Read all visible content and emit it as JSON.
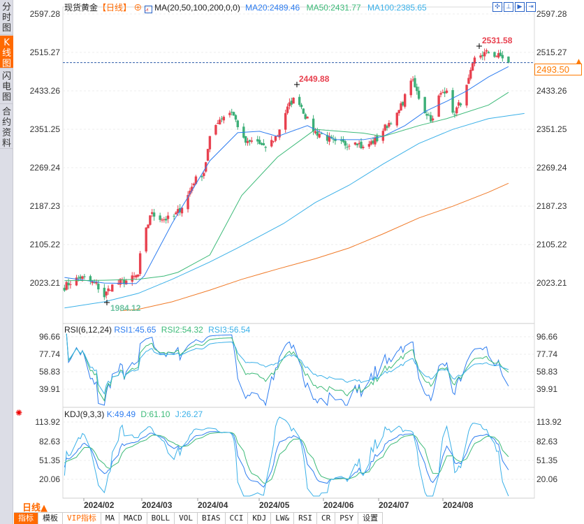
{
  "left_tabs": [
    {
      "label": "分时图",
      "active": false
    },
    {
      "label": "K线图",
      "active": true
    },
    {
      "label": "闪电图",
      "active": false
    },
    {
      "label": "合约资料",
      "active": false
    }
  ],
  "header": {
    "instrument": "现货黄金",
    "period_tag": "【日线】",
    "ma_label": "MA(20,50,100,200,0,0)",
    "ma20": "MA20:2489.46",
    "ma50": "MA50:2431.77",
    "ma100": "MA100:2385.65"
  },
  "toolbar_icons": [
    "crosshair-icon",
    "range-icon",
    "play-icon",
    "exit-icon"
  ],
  "colors": {
    "up": "#e8414f",
    "down": "#3daf78",
    "ma20": "#2e7df0",
    "ma50": "#3cba78",
    "ma100": "#3ab0e8",
    "ma200": "#f07a28",
    "accent": "#ff6a00"
  },
  "price_axis": [
    "2597.28",
    "2515.27",
    "2433.26",
    "2351.25",
    "2269.24",
    "2187.23",
    "2105.22",
    "2023.21"
  ],
  "current_price": "2493.50",
  "annotations": {
    "high_mid": "2449.88",
    "high_top": "2531.58",
    "low": "1984.12"
  },
  "rsi": {
    "label": "RSI(6,12,24)",
    "rsi1": "RSI1:45.65",
    "rsi2": "RSI2:54.32",
    "rsi3": "RSI3:56.54",
    "axis": [
      "96.66",
      "77.74",
      "58.83",
      "39.91"
    ]
  },
  "kdj": {
    "label": "KDJ(9,3,3)",
    "k": "K:49.49",
    "d": "D:61.10",
    "j": "J:26.27",
    "axis": [
      "113.92",
      "82.63",
      "51.35",
      "20.06"
    ]
  },
  "x_axis": {
    "period": "日线▲",
    "months": [
      "2024/02",
      "2024/03",
      "2024/04",
      "2024/05",
      "2024/06",
      "2024/07",
      "2024/08"
    ]
  },
  "bottom_tabs": [
    "指标",
    "模板",
    "VIP指标",
    "MA",
    "MACD",
    "BOLL",
    "VOL",
    "BIAS",
    "CCI",
    "KDJ",
    "LW&",
    "RSI",
    "CR",
    "PSY",
    "设置"
  ],
  "chart_data": {
    "type": "candlestick",
    "ylim": [
      1960,
      2600
    ],
    "close_keypoints": [
      [
        "2024-01-23",
        2015
      ],
      [
        "2024-01-26",
        2025
      ],
      [
        "2024-01-31",
        2035
      ],
      [
        "2024-02-03",
        2030
      ],
      [
        "2024-02-08",
        2020
      ],
      [
        "2024-02-12",
        1995
      ],
      [
        "2024-02-15",
        2015
      ],
      [
        "2024-02-20",
        2025
      ],
      [
        "2024-02-25",
        2030
      ],
      [
        "2024-02-29",
        2040
      ],
      [
        "2024-03-01",
        2080
      ],
      [
        "2024-03-03",
        2120
      ],
      [
        "2024-03-05",
        2150
      ],
      [
        "2024-03-06",
        2170
      ],
      [
        "2024-03-10",
        2165
      ],
      [
        "2024-03-13",
        2160
      ],
      [
        "2024-03-17",
        2160
      ],
      [
        "2024-03-20",
        2175
      ],
      [
        "2024-03-24",
        2200
      ],
      [
        "2024-03-28",
        2240
      ],
      [
        "2024-04-02",
        2260
      ],
      [
        "2024-04-05",
        2330
      ],
      [
        "2024-04-09",
        2370
      ],
      [
        "2024-04-12",
        2380
      ],
      [
        "2024-04-16",
        2390
      ],
      [
        "2024-04-19",
        2360
      ],
      [
        "2024-04-21",
        2330
      ],
      [
        "2024-04-24",
        2320
      ],
      [
        "2024-04-28",
        2330
      ],
      [
        "2024-05-02",
        2310
      ],
      [
        "2024-05-05",
        2320
      ],
      [
        "2024-05-09",
        2340
      ],
      [
        "2024-05-12",
        2380
      ],
      [
        "2024-05-16",
        2410
      ],
      [
        "2024-05-19",
        2420
      ],
      [
        "2024-05-21",
        2400
      ],
      [
        "2024-05-24",
        2370
      ],
      [
        "2024-05-28",
        2345
      ],
      [
        "2024-05-31",
        2340
      ],
      [
        "2024-06-04",
        2330
      ],
      [
        "2024-06-07",
        2320
      ],
      [
        "2024-06-11",
        2320
      ],
      [
        "2024-06-14",
        2320
      ],
      [
        "2024-06-17",
        2330
      ],
      [
        "2024-06-21",
        2310
      ],
      [
        "2024-06-24",
        2320
      ],
      [
        "2024-06-28",
        2330
      ],
      [
        "2024-07-01",
        2350
      ],
      [
        "2024-07-05",
        2370
      ],
      [
        "2024-07-08",
        2380
      ],
      [
        "2024-07-12",
        2420
      ],
      [
        "2024-07-15",
        2460
      ],
      [
        "2024-07-19",
        2420
      ],
      [
        "2024-07-22",
        2390
      ],
      [
        "2024-07-26",
        2370
      ],
      [
        "2024-07-29",
        2420
      ],
      [
        "2024-08-02",
        2440
      ],
      [
        "2024-08-05",
        2380
      ],
      [
        "2024-08-09",
        2410
      ],
      [
        "2024-08-12",
        2440
      ],
      [
        "2024-08-16",
        2500
      ],
      [
        "2024-08-19",
        2510
      ],
      [
        "2024-08-23",
        2515
      ],
      [
        "2024-08-26",
        2510
      ],
      [
        "2024-08-30",
        2505
      ],
      [
        "2024-09-02",
        2493.5
      ]
    ],
    "ma20": [
      [
        "2024-01-23",
        2035
      ],
      [
        "2024-02-12",
        2023
      ],
      [
        "2024-02-28",
        2022
      ],
      [
        "2024-03-03",
        2038
      ],
      [
        "2024-03-17",
        2150
      ],
      [
        "2024-04-05",
        2284
      ],
      [
        "2024-04-19",
        2344
      ],
      [
        "2024-04-30",
        2347
      ],
      [
        "2024-05-09",
        2336
      ],
      [
        "2024-05-24",
        2359
      ],
      [
        "2024-06-07",
        2329
      ],
      [
        "2024-06-21",
        2329
      ],
      [
        "2024-07-01",
        2336
      ],
      [
        "2024-07-12",
        2359
      ],
      [
        "2024-07-22",
        2389
      ],
      [
        "2024-08-02",
        2411
      ],
      [
        "2024-08-12",
        2433
      ],
      [
        "2024-08-23",
        2463
      ],
      [
        "2024-09-02",
        2485
      ]
    ],
    "ma50": [
      [
        "2024-01-23",
        2028
      ],
      [
        "2024-02-12",
        2029
      ],
      [
        "2024-02-29",
        2031
      ],
      [
        "2024-03-13",
        2038
      ],
      [
        "2024-03-20",
        2046
      ],
      [
        "2024-04-05",
        2083
      ],
      [
        "2024-04-21",
        2210
      ],
      [
        "2024-05-09",
        2292
      ],
      [
        "2024-05-28",
        2351
      ],
      [
        "2024-06-21",
        2343
      ],
      [
        "2024-07-01",
        2336
      ],
      [
        "2024-07-19",
        2359
      ],
      [
        "2024-08-02",
        2374
      ],
      [
        "2024-08-23",
        2403
      ],
      [
        "2024-09-02",
        2430
      ]
    ],
    "ma100": [
      [
        "2024-01-23",
        1970
      ],
      [
        "2024-02-12",
        1983
      ],
      [
        "2024-02-29",
        2001
      ],
      [
        "2024-03-17",
        2031
      ],
      [
        "2024-04-05",
        2068
      ],
      [
        "2024-04-19",
        2098
      ],
      [
        "2024-05-12",
        2150
      ],
      [
        "2024-05-28",
        2195
      ],
      [
        "2024-06-14",
        2232
      ],
      [
        "2024-07-01",
        2277
      ],
      [
        "2024-07-19",
        2321
      ],
      [
        "2024-08-05",
        2351
      ],
      [
        "2024-08-23",
        2374
      ],
      [
        "2024-09-10",
        2385
      ]
    ],
    "ma200": [
      [
        "2024-02-20",
        1964
      ],
      [
        "2024-02-29",
        1967
      ],
      [
        "2024-03-17",
        1983
      ],
      [
        "2024-04-05",
        2008
      ],
      [
        "2024-04-21",
        2031
      ],
      [
        "2024-05-09",
        2053
      ],
      [
        "2024-05-28",
        2075
      ],
      [
        "2024-06-14",
        2098
      ],
      [
        "2024-07-01",
        2128
      ],
      [
        "2024-07-19",
        2162
      ],
      [
        "2024-08-05",
        2187
      ],
      [
        "2024-08-23",
        2217
      ],
      [
        "2024-09-02",
        2236
      ]
    ]
  }
}
